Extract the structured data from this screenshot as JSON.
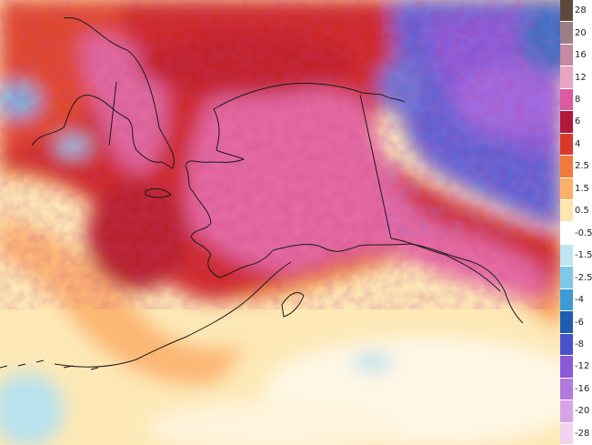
{
  "map": {
    "variable": "temperature anomaly",
    "region": "Alaska",
    "features": [
      "coastline",
      "Alaska–Canada border"
    ]
  },
  "legend": {
    "bins": [
      {
        "label": "28",
        "color": "#5c4a3c"
      },
      {
        "label": "20",
        "color": "#9e7e86"
      },
      {
        "label": "16",
        "color": "#c48aa0"
      },
      {
        "label": "12",
        "color": "#e8a6c4"
      },
      {
        "label": "8",
        "color": "#dc5aa0"
      },
      {
        "label": "6",
        "color": "#b2183a"
      },
      {
        "label": "4",
        "color": "#d73a2a"
      },
      {
        "label": "2.5",
        "color": "#f07a3c"
      },
      {
        "label": "1.5",
        "color": "#fbb06a"
      },
      {
        "label": "0.5",
        "color": "#fde5b0"
      },
      {
        "label": "-0.5",
        "color": "#ffffff"
      },
      {
        "label": "-1.5",
        "color": "#bfe6f0"
      },
      {
        "label": "-2.5",
        "color": "#7fc8ea"
      },
      {
        "label": "-4",
        "color": "#3f9ad6"
      },
      {
        "label": "-6",
        "color": "#1f5cb4"
      },
      {
        "label": "-8",
        "color": "#4a50c8"
      },
      {
        "label": "-12",
        "color": "#8a5ad8"
      },
      {
        "label": "-16",
        "color": "#b27ae0"
      },
      {
        "label": "-20",
        "color": "#d8a4e8"
      },
      {
        "label": "-28",
        "color": "#f2d2ee"
      }
    ]
  }
}
